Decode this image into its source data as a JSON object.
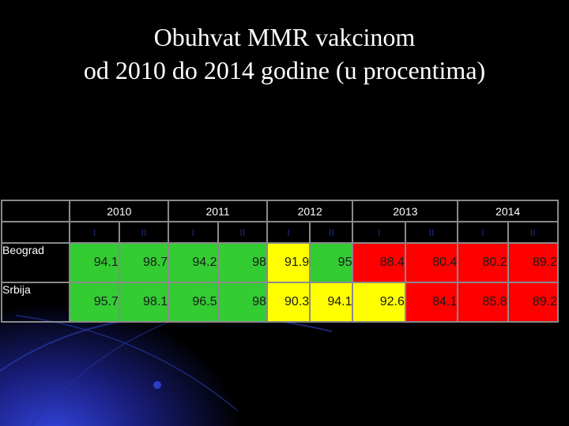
{
  "title": {
    "line1": "Obuhvat MMR vakcinom",
    "line2": "od 2010 do 2014 godine (u procentima)"
  },
  "table": {
    "years": [
      "2010",
      "2011",
      "2012",
      "2013",
      "2014"
    ],
    "halves": [
      "I",
      "II",
      "I",
      "II",
      "I",
      "II",
      "I",
      "II",
      "I",
      "II"
    ],
    "rows": [
      {
        "label": "Beograd",
        "values": [
          "94.1",
          "98.7",
          "94.2",
          "98",
          "91.9",
          "95",
          "88.4",
          "80.4",
          "80.2",
          "89.2"
        ],
        "colors": [
          "green",
          "green",
          "green",
          "green",
          "yellow",
          "green",
          "red",
          "red",
          "red",
          "red"
        ]
      },
      {
        "label": "Srbija",
        "values": [
          "95.7",
          "98.1",
          "96.5",
          "98",
          "90.3",
          "94.1",
          "92.6",
          "84.1",
          "85.8",
          "89.2"
        ],
        "colors": [
          "green",
          "green",
          "green",
          "green",
          "yellow",
          "yellow",
          "yellow",
          "red",
          "red",
          "red"
        ]
      }
    ]
  },
  "colors": {
    "green": "#33cc33",
    "yellow": "#ffff00",
    "red": "#ff0000",
    "background": "#000000"
  }
}
